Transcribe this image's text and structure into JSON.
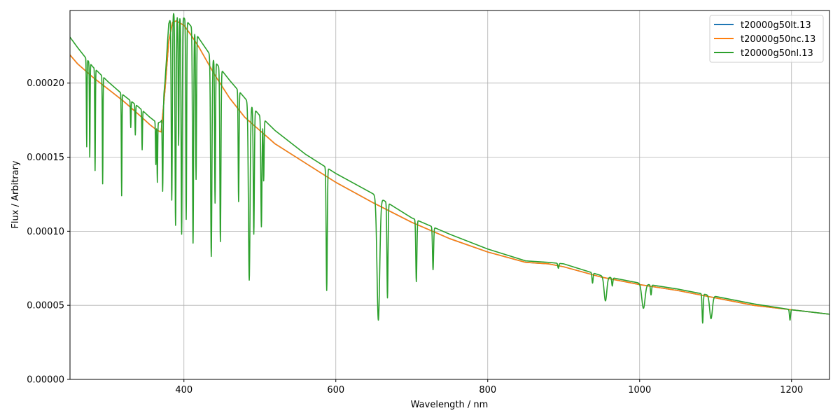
{
  "chart_data": {
    "type": "line",
    "title": "",
    "xlabel": "Wavelength / nm",
    "ylabel": "Flux / Arbitrary",
    "xlim": [
      250,
      1250
    ],
    "ylim": [
      0,
      0.000249
    ],
    "grid": true,
    "legend_position": "top-right",
    "x_ticks": [
      {
        "value": 400,
        "label": "400"
      },
      {
        "value": 600,
        "label": "600"
      },
      {
        "value": 800,
        "label": "800"
      },
      {
        "value": 1000,
        "label": "1000"
      },
      {
        "value": 1200,
        "label": "1200"
      }
    ],
    "y_ticks": [
      {
        "value": 0,
        "label": "0.00000"
      },
      {
        "value": 5e-05,
        "label": "0.00005"
      },
      {
        "value": 0.0001,
        "label": "0.00010"
      },
      {
        "value": 0.00015,
        "label": "0.00015"
      },
      {
        "value": 0.0002,
        "label": "0.00020"
      }
    ],
    "series": [
      {
        "name": "t20000g50lt.13",
        "color": "#1f77b4",
        "x": [
          250,
          260,
          280,
          300,
          320,
          340,
          355,
          365,
          370,
          375,
          380,
          385,
          390,
          400,
          410,
          420,
          440,
          460,
          480,
          500,
          520,
          560,
          600,
          650,
          700,
          750,
          800,
          850,
          880,
          900,
          950,
          1000,
          1050,
          1100,
          1150,
          1200,
          1250
        ],
        "y": [
          0.000219,
          0.000213,
          0.000204,
          0.000196,
          0.000188,
          0.000179,
          0.000172,
          0.000168,
          0.000167,
          0.000195,
          0.000228,
          0.000241,
          0.000242,
          0.000239,
          0.000232,
          0.000224,
          0.000206,
          0.00019,
          0.000177,
          0.000168,
          0.000159,
          0.000146,
          0.000133,
          0.000119,
          0.000106,
          9.5e-05,
          8.6e-05,
          7.9e-05,
          7.8e-05,
          7.6e-05,
          6.9e-05,
          6.4e-05,
          6e-05,
          5.5e-05,
          5e-05,
          4.7e-05,
          4.4e-05
        ]
      },
      {
        "name": "t20000g50nc.13",
        "color": "#ff7f0e",
        "x": [
          250,
          260,
          280,
          300,
          320,
          340,
          355,
          365,
          370,
          375,
          380,
          385,
          390,
          400,
          410,
          420,
          440,
          460,
          480,
          500,
          520,
          560,
          600,
          650,
          700,
          750,
          800,
          850,
          880,
          900,
          950,
          1000,
          1050,
          1100,
          1150,
          1200,
          1250
        ],
        "y": [
          0.000219,
          0.000213,
          0.000204,
          0.000196,
          0.000188,
          0.000179,
          0.000172,
          0.000168,
          0.000167,
          0.000195,
          0.000228,
          0.000241,
          0.000242,
          0.000239,
          0.000232,
          0.000224,
          0.000206,
          0.00019,
          0.000177,
          0.000168,
          0.000159,
          0.000146,
          0.000133,
          0.000119,
          0.000106,
          9.5e-05,
          8.6e-05,
          7.9e-05,
          7.8e-05,
          7.6e-05,
          6.9e-05,
          6.4e-05,
          6e-05,
          5.5e-05,
          5e-05,
          4.7e-05,
          4.4e-05
        ]
      },
      {
        "name": "t20000g50nl.13",
        "color": "#2ca02c",
        "continuum": {
          "x": [
            250,
            260,
            280,
            300,
            320,
            340,
            355,
            365,
            370,
            375,
            380,
            385,
            390,
            400,
            410,
            420,
            440,
            460,
            480,
            500,
            520,
            560,
            600,
            650,
            700,
            750,
            800,
            850,
            880,
            900,
            950,
            1000,
            1050,
            1100,
            1150,
            1200,
            1250
          ],
          "y": [
            0.000231,
            0.000224,
            0.000211,
            0.000201,
            0.000192,
            0.000184,
            0.000177,
            0.000173,
            0.000174,
            0.0002,
            0.00024,
            0.000248,
            0.000246,
            0.000244,
            0.000238,
            0.00023,
            0.000215,
            0.000202,
            0.00019,
            0.000178,
            0.000168,
            0.000152,
            0.000139,
            0.000125,
            0.000109,
            9.8e-05,
            8.8e-05,
            8e-05,
            7.9e-05,
            7.8e-05,
            7e-05,
            6.5e-05,
            6.1e-05,
            5.6e-05,
            5.1e-05,
            4.7e-05,
            4.4e-05
          ]
        },
        "absorption_lines": [
          {
            "x": 272,
            "y": 0.000157,
            "w": 0.6
          },
          {
            "x": 276,
            "y": 0.00015,
            "w": 0.6
          },
          {
            "x": 283,
            "y": 0.000141,
            "w": 0.6
          },
          {
            "x": 293,
            "y": 0.000132,
            "w": 0.6
          },
          {
            "x": 318,
            "y": 0.000124,
            "w": 0.6
          },
          {
            "x": 330,
            "y": 0.00017,
            "w": 0.6
          },
          {
            "x": 336,
            "y": 0.000165,
            "w": 0.6
          },
          {
            "x": 345,
            "y": 0.000155,
            "w": 0.6
          },
          {
            "x": 363,
            "y": 0.000145,
            "w": 0.6
          },
          {
            "x": 365,
            "y": 0.000133,
            "w": 0.6
          },
          {
            "x": 372,
            "y": 0.000127,
            "w": 0.8
          },
          {
            "x": 384,
            "y": 0.000121,
            "w": 1
          },
          {
            "x": 389,
            "y": 0.000104,
            "w": 1
          },
          {
            "x": 393,
            "y": 0.000158,
            "w": 0.8
          },
          {
            "x": 397,
            "y": 9.8e-05,
            "w": 1
          },
          {
            "x": 403,
            "y": 0.000108,
            "w": 0.8
          },
          {
            "x": 412,
            "y": 9.2e-05,
            "w": 1
          },
          {
            "x": 416,
            "y": 0.000135,
            "w": 0.8
          },
          {
            "x": 436,
            "y": 8.3e-05,
            "w": 1.2
          },
          {
            "x": 441,
            "y": 0.000119,
            "w": 0.8
          },
          {
            "x": 448,
            "y": 9.3e-05,
            "w": 1
          },
          {
            "x": 472,
            "y": 0.00012,
            "w": 0.8
          },
          {
            "x": 486,
            "y": 6.7e-05,
            "w": 1.5
          },
          {
            "x": 492,
            "y": 9.8e-05,
            "w": 1
          },
          {
            "x": 502,
            "y": 0.000103,
            "w": 1
          },
          {
            "x": 505,
            "y": 0.000134,
            "w": 0.8
          },
          {
            "x": 588,
            "y": 6e-05,
            "w": 1
          },
          {
            "x": 656,
            "y": 4e-05,
            "w": 2.5
          },
          {
            "x": 668,
            "y": 5.5e-05,
            "w": 1
          },
          {
            "x": 706,
            "y": 6.6e-05,
            "w": 1
          },
          {
            "x": 728,
            "y": 7.4e-05,
            "w": 1
          },
          {
            "x": 893,
            "y": 7.5e-05,
            "w": 1
          },
          {
            "x": 938,
            "y": 6.5e-05,
            "w": 1
          },
          {
            "x": 955,
            "y": 5.3e-05,
            "w": 2.5
          },
          {
            "x": 964,
            "y": 6.3e-05,
            "w": 1
          },
          {
            "x": 1005,
            "y": 4.8e-05,
            "w": 3
          },
          {
            "x": 1015,
            "y": 5.7e-05,
            "w": 1
          },
          {
            "x": 1083,
            "y": 3.8e-05,
            "w": 1
          },
          {
            "x": 1094,
            "y": 4.1e-05,
            "w": 2.5
          },
          {
            "x": 1198,
            "y": 4e-05,
            "w": 1
          }
        ]
      }
    ]
  }
}
